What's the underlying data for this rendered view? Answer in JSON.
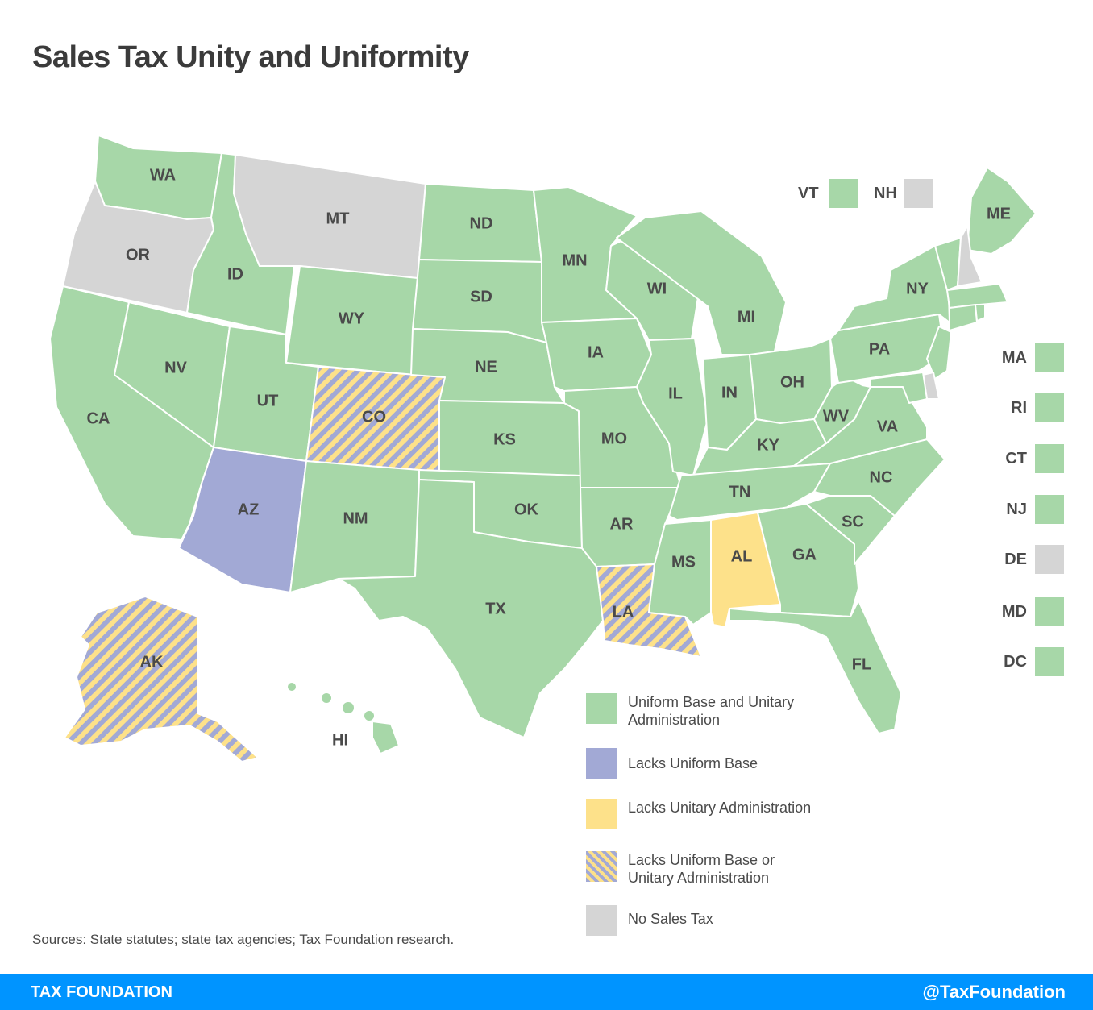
{
  "title": "Sales Tax Unity and Uniformity",
  "colors": {
    "uniform_unitary": "#a7d7a8",
    "lacks_uniform_base": "#a2a9d5",
    "lacks_unitary_admin": "#fde18a",
    "no_sales_tax": "#d5d5d5",
    "stripe_a": "#fde18a",
    "stripe_b": "#a2a9d5",
    "footer_bar": "#0094ff"
  },
  "states": {
    "WA": "WA",
    "OR": "OR",
    "CA": "CA",
    "ID": "ID",
    "NV": "NV",
    "MT": "MT",
    "WY": "WY",
    "UT": "UT",
    "AZ": "AZ",
    "CO": "CO",
    "NM": "NM",
    "ND": "ND",
    "SD": "SD",
    "NE": "NE",
    "KS": "KS",
    "OK": "OK",
    "TX": "TX",
    "MN": "MN",
    "IA": "IA",
    "MO": "MO",
    "AR": "AR",
    "LA": "LA",
    "WI": "WI",
    "IL": "IL",
    "MS": "MS",
    "MI": "MI",
    "IN": "IN",
    "OH": "OH",
    "KY": "KY",
    "TN": "TN",
    "AL": "AL",
    "GA": "GA",
    "FL": "FL",
    "SC": "SC",
    "NC": "NC",
    "VA": "VA",
    "WV": "WV",
    "PA": "PA",
    "NY": "NY",
    "ME": "ME",
    "AK": "AK",
    "HI": "HI"
  },
  "small_states": {
    "VT": "VT",
    "NH": "NH",
    "MA": "MA",
    "RI": "RI",
    "CT": "CT",
    "NJ": "NJ",
    "DE": "DE",
    "MD": "MD",
    "DC": "DC"
  },
  "legend": [
    {
      "label": "Uniform Base and Unitary Administration",
      "color": "#a7d7a8"
    },
    {
      "label": "Lacks Uniform Base",
      "color": "#a2a9d5"
    },
    {
      "label": "Lacks Unitary Administration",
      "color": "#fde18a"
    },
    {
      "label": "Lacks Uniform Base or Unitary Administration",
      "color": "striped"
    },
    {
      "label": "No Sales Tax",
      "color": "#d5d5d5"
    }
  ],
  "source": "Sources: State statutes; state tax agencies; Tax Foundation research.",
  "footer": {
    "left": "TAX FOUNDATION",
    "right": "@TaxFoundation"
  }
}
